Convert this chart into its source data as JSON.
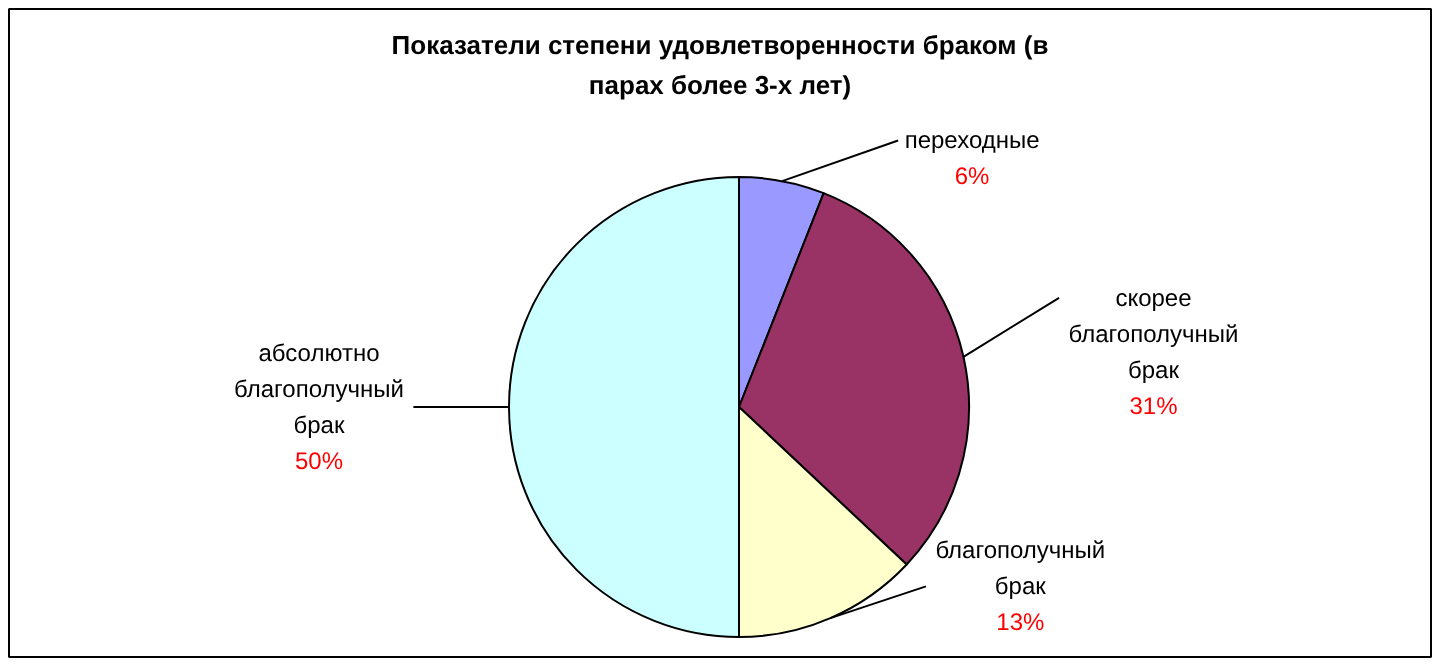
{
  "chart_data": {
    "type": "pie",
    "title": "Показатели степени удовлетворенности браком (в парах более 3-х лет)",
    "categories": [
      "переходные",
      "скорее благополучный брак",
      "благополучный брак",
      "абсолютно благополучный брак"
    ],
    "values": [
      6,
      31,
      13,
      50
    ],
    "value_labels": [
      "6%",
      "31%",
      "13%",
      "50%"
    ],
    "colors": [
      "#9999ff",
      "#993366",
      "#ffffcc",
      "#ccffff"
    ]
  }
}
